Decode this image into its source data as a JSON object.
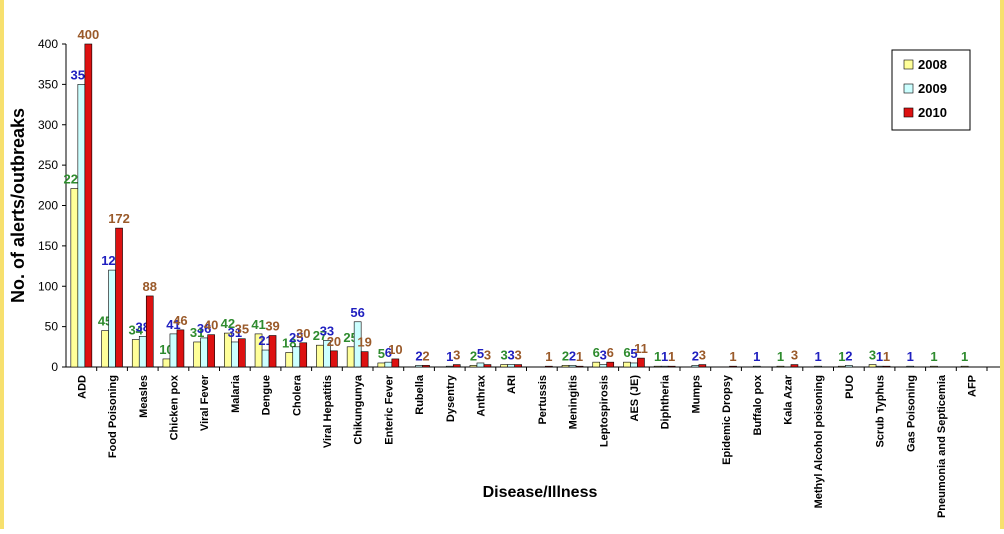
{
  "chart_data": {
    "type": "bar",
    "title": "",
    "xlabel": "Disease/Illness",
    "ylabel": "No. of alerts/outbreaks",
    "ylim": [
      0,
      400
    ],
    "yticks": [
      0,
      50,
      100,
      150,
      200,
      250,
      300,
      350,
      400
    ],
    "categories": [
      "ADD",
      "Food Poisoning",
      "Measles",
      "Chicken pox",
      "Viral Fever",
      "Malaria",
      "Dengue",
      "Cholera",
      "Viral Hepatitis",
      "Chikungunya",
      "Enteric Fever",
      "Rubella",
      "Dysentry",
      "Anthrax",
      "ARI",
      "Pertussis",
      "Meningitis",
      "Leptospirosis",
      "AES (JE)",
      "Diphtheria",
      "Mumps",
      "Epidemic Dropsy",
      "Buffalo pox",
      "Kala Azar",
      "Methyl Alcohol poisoning",
      "PUO",
      "Scrub Typhus",
      "Gas Poisoning",
      "Pneumonia and Septicemia",
      "AFP"
    ],
    "series": [
      {
        "name": "2008",
        "color": "#ffff99",
        "label_color": "#2e8b2e",
        "values": [
          221,
          45,
          34,
          10,
          31,
          42,
          41,
          18,
          27,
          25,
          5,
          null,
          null,
          2,
          3,
          null,
          2,
          6,
          6,
          1,
          null,
          null,
          null,
          1,
          null,
          1,
          3,
          null,
          1,
          1
        ]
      },
      {
        "name": "2009",
        "color": "#ccffff",
        "label_color": "#1f1fbf",
        "values": [
          350,
          120,
          38,
          41,
          36,
          31,
          21,
          25,
          33,
          56,
          6,
          2,
          1,
          5,
          3,
          null,
          2,
          3,
          5,
          1,
          2,
          null,
          1,
          null,
          1,
          2,
          1,
          1,
          null,
          null
        ]
      },
      {
        "name": "2010",
        "color": "#dd1111",
        "label_color": "#9a5a2a",
        "values": [
          400,
          172,
          88,
          46,
          40,
          35,
          39,
          30,
          20,
          19,
          10,
          2,
          3,
          3,
          3,
          1,
          1,
          6,
          11,
          1,
          3,
          1,
          null,
          3,
          null,
          null,
          1,
          null,
          null,
          null
        ]
      }
    ],
    "legend": {
      "position": "top-right"
    },
    "grid": false
  }
}
